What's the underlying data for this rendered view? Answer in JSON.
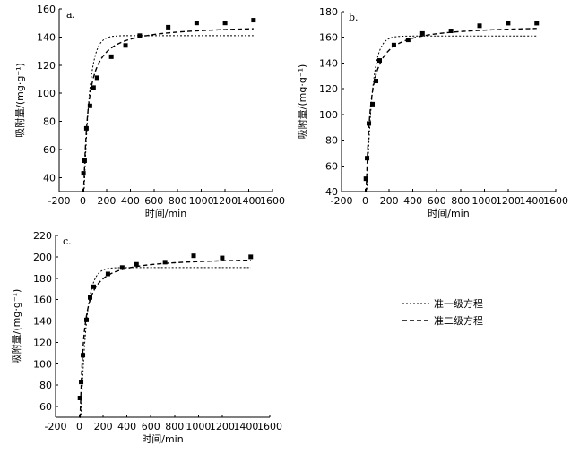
{
  "chart_data": [
    {
      "type": "scatter",
      "panel_label": "a.",
      "xlabel": "时间/min",
      "ylabel": "吸附量/(mg·g⁻¹)",
      "xlim": [
        -200,
        1600
      ],
      "ylim": [
        30,
        160
      ],
      "xticks": [
        -200,
        0,
        200,
        400,
        600,
        800,
        1000,
        1200,
        1400,
        1600
      ],
      "yticks": [
        40,
        60,
        80,
        100,
        120,
        140,
        160
      ],
      "points": {
        "x": [
          5,
          15,
          30,
          60,
          90,
          120,
          240,
          360,
          480,
          720,
          960,
          1200,
          1440
        ],
        "y": [
          43,
          52,
          75,
          91,
          104,
          111,
          126,
          134,
          141,
          147,
          150,
          150,
          152
        ]
      },
      "fit1": {
        "qe": 141,
        "k": 0.022
      },
      "fit2": {
        "qe": 149,
        "k": 0.00022
      }
    },
    {
      "type": "scatter",
      "panel_label": "b.",
      "xlabel": "时间/min",
      "ylabel": "吸附量/(mg·g⁻¹)",
      "xlim": [
        -200,
        1600
      ],
      "ylim": [
        40,
        180
      ],
      "xticks": [
        -200,
        0,
        200,
        400,
        600,
        800,
        1000,
        1200,
        1400,
        1600
      ],
      "yticks": [
        40,
        60,
        80,
        100,
        120,
        140,
        160,
        180
      ],
      "points": {
        "x": [
          5,
          15,
          30,
          60,
          90,
          120,
          240,
          360,
          480,
          720,
          960,
          1200,
          1440
        ],
        "y": [
          50,
          66,
          93,
          108,
          126,
          142,
          154,
          158,
          163,
          165,
          169,
          171,
          171
        ]
      },
      "fit1": {
        "qe": 161,
        "k": 0.022
      },
      "fit2": {
        "qe": 170,
        "k": 0.00022
      }
    },
    {
      "type": "scatter",
      "panel_label": "c.",
      "xlabel": "时间/min",
      "ylabel": "吸附量/(mg·g⁻¹)",
      "xlim": [
        -200,
        1600
      ],
      "ylim": [
        50,
        220
      ],
      "xticks": [
        -200,
        0,
        200,
        400,
        600,
        800,
        1000,
        1200,
        1400,
        1600
      ],
      "yticks": [
        60,
        80,
        100,
        120,
        140,
        160,
        180,
        200,
        220
      ],
      "points": {
        "x": [
          5,
          15,
          30,
          60,
          90,
          120,
          240,
          360,
          480,
          720,
          960,
          1200,
          1440
        ],
        "y": [
          68,
          83,
          108,
          141,
          162,
          172,
          184,
          190,
          193,
          195,
          201,
          199,
          200
        ]
      },
      "fit1": {
        "qe": 190,
        "k": 0.022
      },
      "fit2": {
        "qe": 200,
        "k": 0.00022
      }
    }
  ],
  "legend": [
    {
      "label": "准一级方程",
      "style": "short-dash"
    },
    {
      "label": "准二级方程",
      "style": "long-dash"
    }
  ]
}
